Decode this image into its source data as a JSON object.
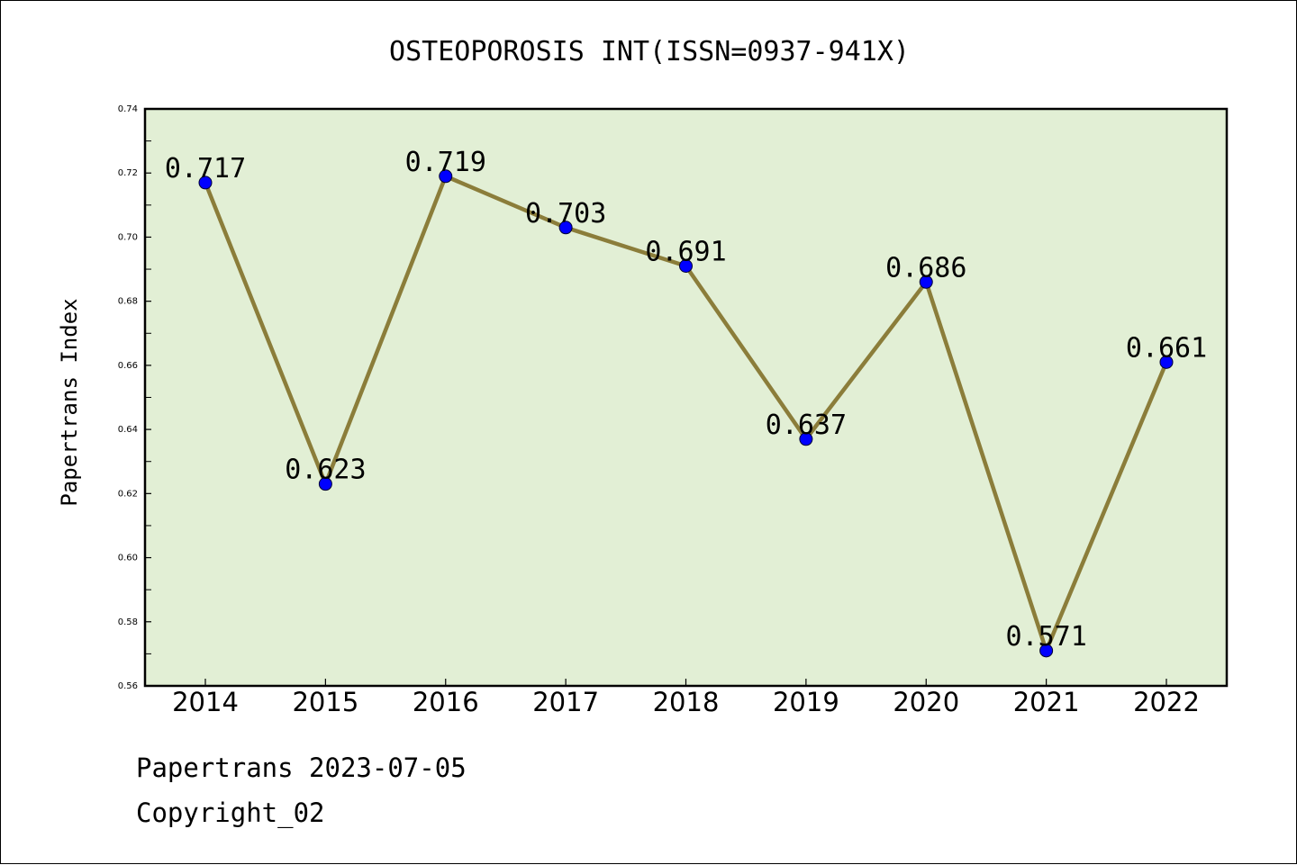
{
  "chart_data": {
    "type": "line",
    "title": "OSTEOPOROSIS INT(ISSN=0937-941X)",
    "xlabel": "",
    "ylabel": "Papertrans Index",
    "categories": [
      "2014",
      "2015",
      "2016",
      "2017",
      "2018",
      "2019",
      "2020",
      "2021",
      "2022"
    ],
    "series": [
      {
        "values": [
          0.717,
          0.623,
          0.719,
          0.703,
          0.691,
          0.637,
          0.686,
          0.571,
          0.661
        ]
      }
    ],
    "data_labels": [
      "0.717",
      "0.623",
      "0.719",
      "0.703",
      "0.691",
      "0.637",
      "0.686",
      "0.571",
      "0.661"
    ],
    "ylim": [
      0.56,
      0.74
    ],
    "yticks": [
      "0.56",
      "0.58",
      "0.60",
      "0.62",
      "0.64",
      "0.66",
      "0.68",
      "0.70",
      "0.72",
      "0.74"
    ],
    "grid": false,
    "legend": "none",
    "colors": {
      "plot_background": "#e2efd5",
      "line": "#8b7d3a",
      "marker": "#0000ff",
      "axis": "#000000"
    }
  },
  "footer": {
    "source": "Papertrans 2023-07-05",
    "copyright": "Copyright_02"
  }
}
